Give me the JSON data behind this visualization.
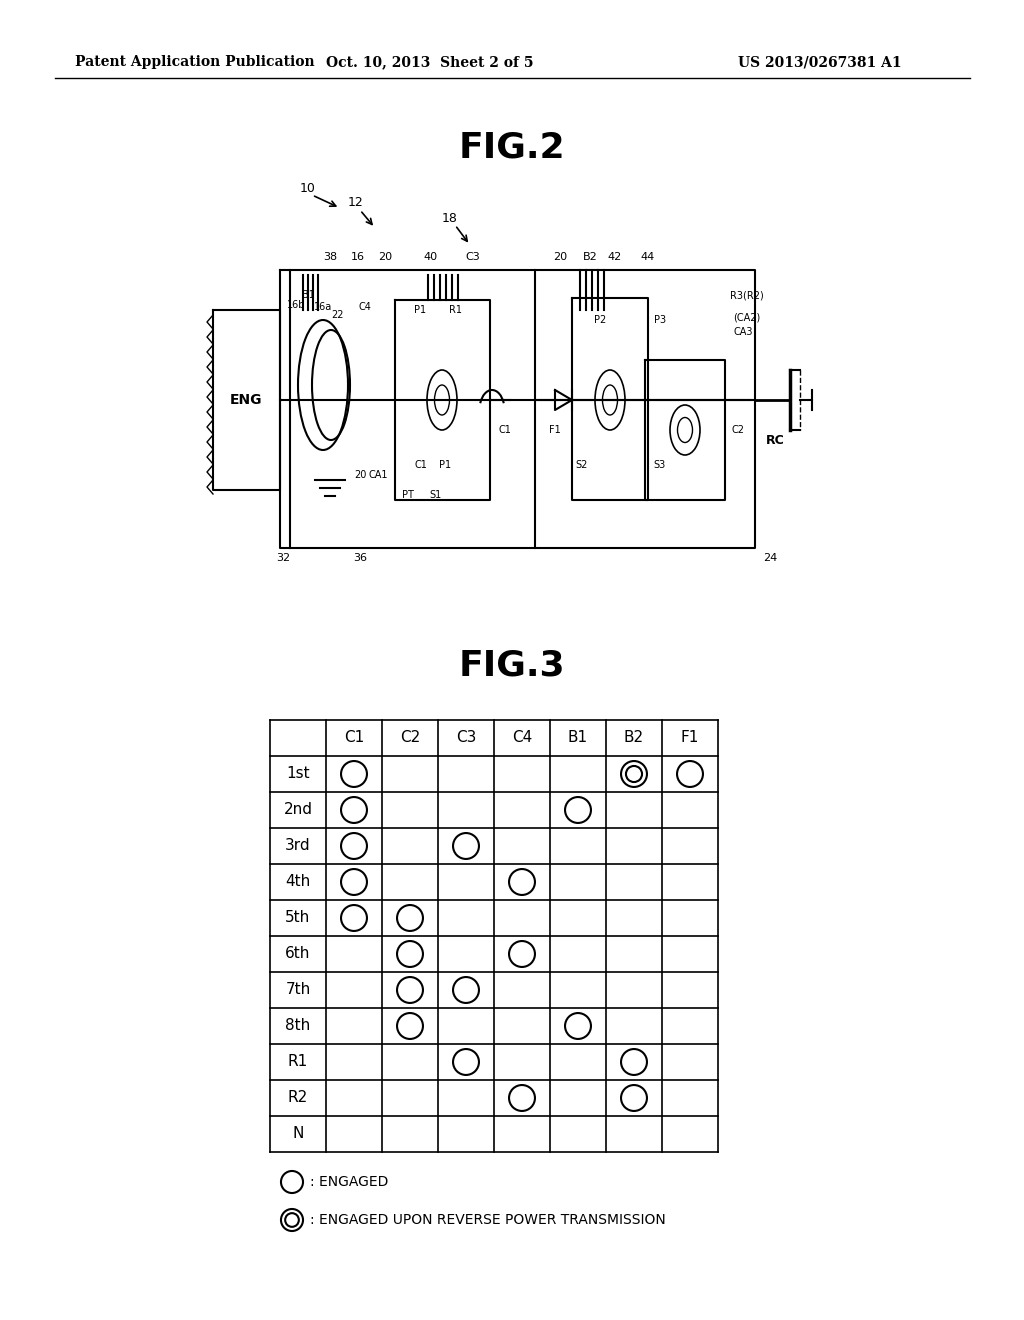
{
  "header_left": "Patent Application Publication",
  "header_mid": "Oct. 10, 2013  Sheet 2 of 5",
  "header_right": "US 2013/0267381 A1",
  "fig2_title": "FIG.2",
  "fig3_title": "FIG.3",
  "table_cols": [
    "",
    "C1",
    "C2",
    "C3",
    "C4",
    "B1",
    "B2",
    "F1"
  ],
  "table_rows": [
    "1st",
    "2nd",
    "3rd",
    "4th",
    "5th",
    "6th",
    "7th",
    "8th",
    "R1",
    "R2",
    "N"
  ],
  "regular_circles": [
    [
      1,
      1
    ],
    [
      1,
      7
    ],
    [
      2,
      1
    ],
    [
      2,
      5
    ],
    [
      3,
      1
    ],
    [
      3,
      3
    ],
    [
      4,
      1
    ],
    [
      4,
      4
    ],
    [
      5,
      1
    ],
    [
      5,
      2
    ],
    [
      6,
      2
    ],
    [
      6,
      4
    ],
    [
      7,
      2
    ],
    [
      7,
      3
    ],
    [
      8,
      2
    ],
    [
      8,
      5
    ],
    [
      9,
      3
    ],
    [
      9,
      6
    ],
    [
      10,
      4
    ],
    [
      10,
      6
    ]
  ],
  "double_circles": [
    [
      1,
      6
    ]
  ],
  "legend_open": ": ENGAGED",
  "legend_double": ": ENGAGED UPON REVERSE POWER TRANSMISSION",
  "background_color": "#ffffff"
}
